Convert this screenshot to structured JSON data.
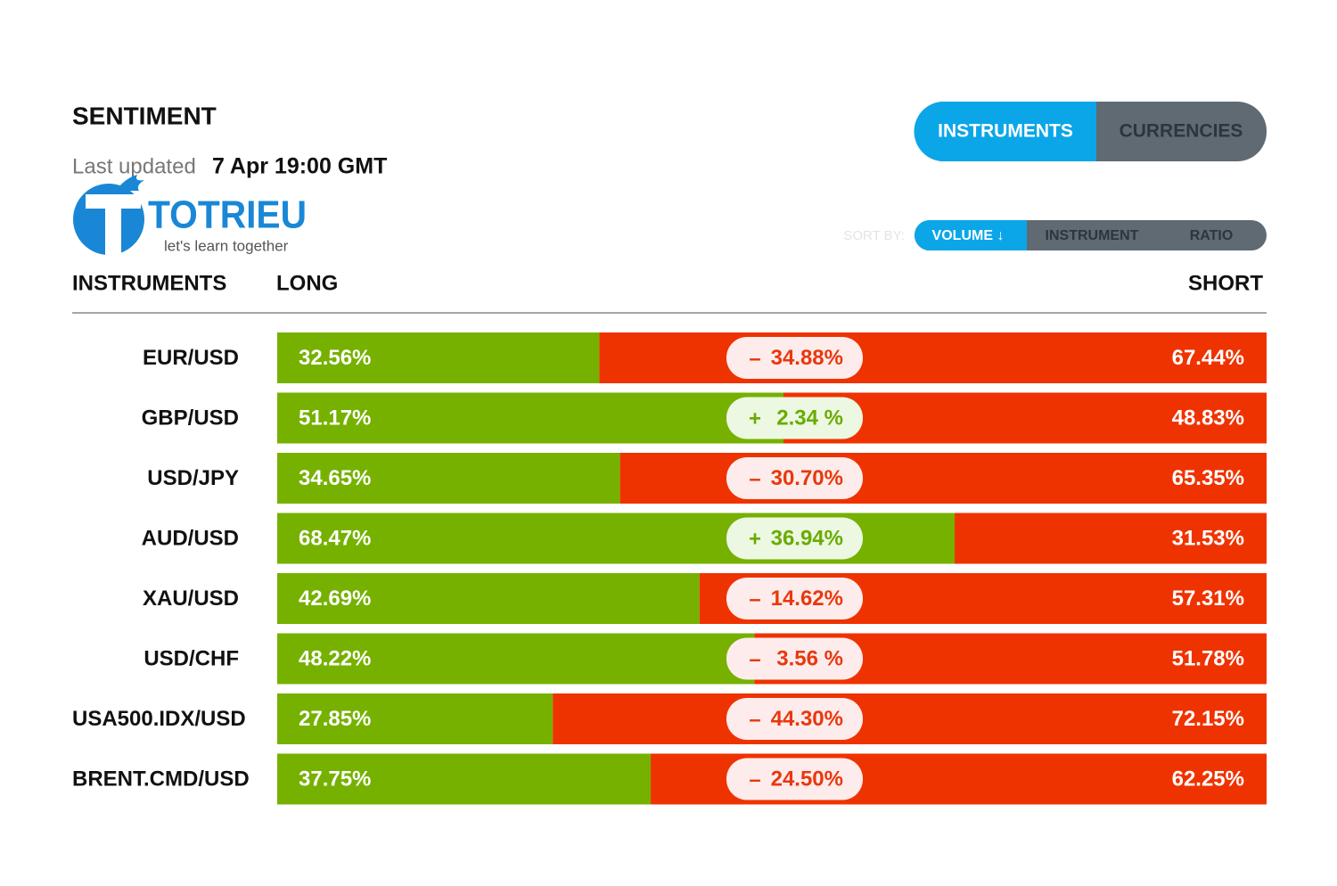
{
  "header": {
    "title": "SENTIMENT",
    "updated_label": "Last updated",
    "updated_time": "7 Apr 19:00 GMT"
  },
  "logo": {
    "name": "TOTRIEU",
    "tagline": "let's learn together"
  },
  "tabs": [
    {
      "label": "INSTRUMENTS",
      "active": true
    },
    {
      "label": "CURRENCIES",
      "active": false
    }
  ],
  "sort": {
    "label": "SORT BY:",
    "options": [
      {
        "label": "VOLUME ↓",
        "active": true
      },
      {
        "label": "INSTRUMENT",
        "active": false
      },
      {
        "label": "RATIO",
        "active": false
      }
    ]
  },
  "columns": {
    "instrument": "INSTRUMENTS",
    "long": "LONG",
    "short": "SHORT"
  },
  "colors": {
    "long": "#76b100",
    "short": "#ef3300"
  },
  "rows": [
    {
      "instrument": "EUR/USD",
      "long": {
        "value": 32.56,
        "label": "32.56%"
      },
      "change": {
        "sign": "–",
        "text": "34.88%"
      },
      "short": {
        "value": 67.44,
        "label": "67.44%"
      }
    },
    {
      "instrument": "GBP/USD",
      "long": {
        "value": 51.17,
        "label": "51.17%"
      },
      "change": {
        "sign": "+",
        "text": "2.34 %"
      },
      "short": {
        "value": 48.83,
        "label": "48.83%"
      }
    },
    {
      "instrument": "USD/JPY",
      "long": {
        "value": 34.65,
        "label": "34.65%"
      },
      "change": {
        "sign": "–",
        "text": "30.70%"
      },
      "short": {
        "value": 65.35,
        "label": "65.35%"
      }
    },
    {
      "instrument": "AUD/USD",
      "long": {
        "value": 68.47,
        "label": "68.47%"
      },
      "change": {
        "sign": "+",
        "text": "36.94%"
      },
      "short": {
        "value": 31.53,
        "label": "31.53%"
      }
    },
    {
      "instrument": "XAU/USD",
      "long": {
        "value": 42.69,
        "label": "42.69%"
      },
      "change": {
        "sign": "–",
        "text": "14.62%"
      },
      "short": {
        "value": 57.31,
        "label": "57.31%"
      }
    },
    {
      "instrument": "USD/CHF",
      "long": {
        "value": 48.22,
        "label": "48.22%"
      },
      "change": {
        "sign": "–",
        "text": "3.56 %"
      },
      "short": {
        "value": 51.78,
        "label": "51.78%"
      }
    },
    {
      "instrument": "USA500.IDX/USD",
      "long": {
        "value": 27.85,
        "label": "27.85%"
      },
      "change": {
        "sign": "–",
        "text": "44.30%"
      },
      "short": {
        "value": 72.15,
        "label": "72.15%"
      }
    },
    {
      "instrument": "BRENT.CMD/USD",
      "long": {
        "value": 37.75,
        "label": "37.75%"
      },
      "change": {
        "sign": "–",
        "text": "24.50%"
      },
      "short": {
        "value": 62.25,
        "label": "62.25%"
      }
    }
  ]
}
